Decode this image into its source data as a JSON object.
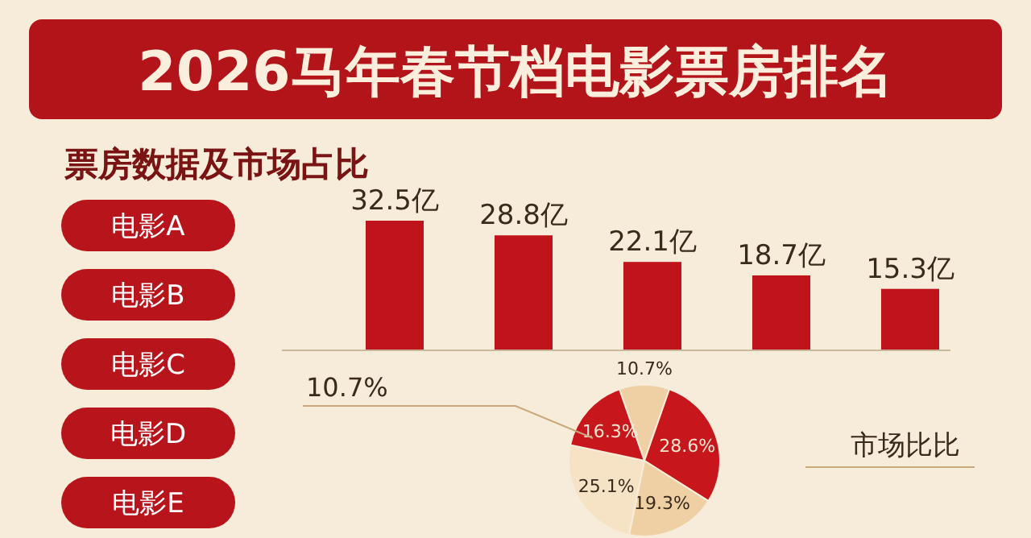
{
  "chart_data": [
    {
      "type": "bar",
      "title": "2026马年春节档电影票房排名",
      "subtitle": "票房数据及市场占比",
      "categories": [
        null,
        null,
        null,
        null,
        null
      ],
      "values": [
        32.5,
        28.8,
        22.1,
        18.7,
        15.3
      ],
      "value_labels": [
        "32.5亿",
        "28.8亿",
        "22.1亿",
        "18.7亿",
        "15.3亿"
      ],
      "color": "#c0141c",
      "annotations": [
        "电影A",
        "电影B",
        "电影C",
        "电影D",
        "电影E"
      ]
    },
    {
      "type": "pie",
      "title": "市场比比",
      "categories": [
        null,
        null,
        null,
        null,
        null
      ],
      "values": [
        10.7,
        28.6,
        19.3,
        25.1,
        16.3
      ],
      "value_labels": [
        "10.7%",
        "28.6%",
        "19.3%",
        "25.1%",
        "16.3%"
      ],
      "colors": [
        "#efd0a4",
        "#c8161d",
        "#efd0a4",
        "#f6e3c6",
        "#c8161d"
      ],
      "annotations": [
        "10.7%"
      ]
    }
  ]
}
